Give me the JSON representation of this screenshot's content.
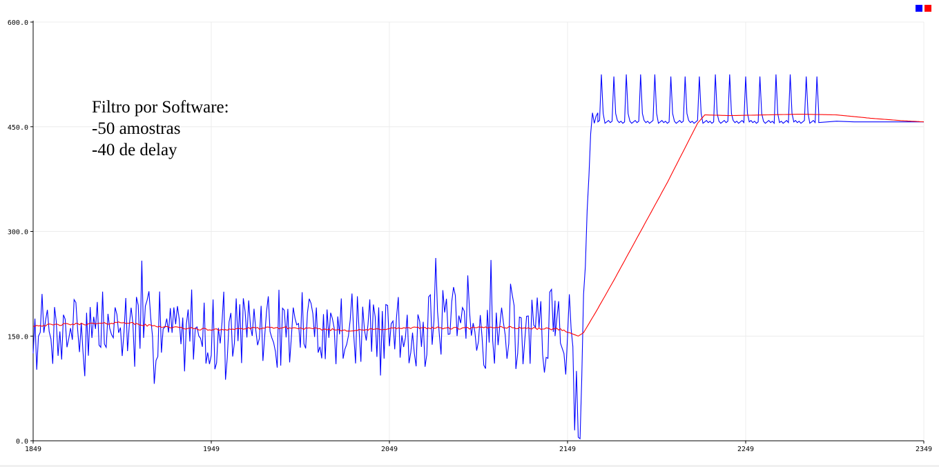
{
  "chart_data": {
    "type": "line",
    "title": "",
    "xlabel": "",
    "ylabel": "",
    "xlim": [
      1849,
      2349
    ],
    "ylim": [
      0,
      600
    ],
    "grid": true,
    "legend": "top-right",
    "x_ticks": [
      "1849",
      "1949",
      "2049",
      "2149",
      "2249",
      "2349"
    ],
    "y_ticks": [
      "600.0",
      "450.0",
      "300.0",
      "150.0",
      "0.0"
    ],
    "annotation": [
      "Filtro por Software:",
      "-50 amostras",
      "-40 de delay"
    ],
    "series": [
      {
        "color": "#0000ff",
        "segments": [
          {
            "x0": 1849,
            "x1": 2142,
            "base": 160,
            "amp": 58,
            "seed": 7
          },
          {
            "x0": 2142,
            "x1": 2157,
            "points": [
              [
                2142,
                150
              ],
              [
                2144,
                200
              ],
              [
                2145,
                140
              ],
              [
                2147,
                125
              ],
              [
                2148,
                95
              ],
              [
                2149,
                150
              ],
              [
                2150,
                210
              ],
              [
                2151,
                160
              ],
              [
                2152,
                135
              ],
              [
                2153,
                15
              ],
              [
                2154,
                100
              ],
              [
                2155,
                5
              ],
              [
                2156,
                3
              ],
              [
                2157,
                90
              ]
            ]
          },
          {
            "x0": 2157,
            "x1": 2166,
            "points": [
              [
                2157,
                90
              ],
              [
                2158,
                210
              ],
              [
                2159,
                250
              ],
              [
                2160,
                330
              ],
              [
                2161,
                380
              ],
              [
                2162,
                440
              ],
              [
                2163,
                470
              ],
              [
                2164,
                455
              ],
              [
                2165,
                465
              ],
              [
                2166,
                470
              ]
            ]
          },
          {
            "x0": 2166,
            "x1": 2290,
            "spikes": [
              2168,
              2175,
              2182,
              2190,
              2198,
              2207,
              2215,
              2223,
              2232,
              2240,
              2249,
              2257,
              2266,
              2274,
              2283,
              2289
            ],
            "base": 457,
            "peak": 525
          },
          {
            "x0": 2290,
            "x1": 2349,
            "points": [
              [
                2290,
                456
              ],
              [
                2300,
                458
              ],
              [
                2310,
                457
              ],
              [
                2320,
                457
              ],
              [
                2330,
                457
              ],
              [
                2340,
                457
              ],
              [
                2349,
                457
              ]
            ]
          }
        ]
      },
      {
        "color": "#ff0000",
        "points": [
          [
            1849,
            165
          ],
          [
            1870,
            167
          ],
          [
            1890,
            168
          ],
          [
            1900,
            170
          ],
          [
            1910,
            166
          ],
          [
            1930,
            162
          ],
          [
            1950,
            159
          ],
          [
            1970,
            161
          ],
          [
            1990,
            162
          ],
          [
            2010,
            160
          ],
          [
            2030,
            158
          ],
          [
            2050,
            161
          ],
          [
            2070,
            162
          ],
          [
            2090,
            161
          ],
          [
            2110,
            163
          ],
          [
            2130,
            161
          ],
          [
            2145,
            160
          ],
          [
            2150,
            155
          ],
          [
            2155,
            150
          ],
          [
            2158,
            155
          ],
          [
            2165,
            185
          ],
          [
            2175,
            230
          ],
          [
            2190,
            300
          ],
          [
            2205,
            370
          ],
          [
            2215,
            420
          ],
          [
            2222,
            455
          ],
          [
            2226,
            467
          ],
          [
            2240,
            466
          ],
          [
            2260,
            467
          ],
          [
            2280,
            468
          ],
          [
            2300,
            467
          ],
          [
            2320,
            462
          ],
          [
            2335,
            459
          ],
          [
            2349,
            457
          ]
        ]
      }
    ]
  },
  "legend": {
    "swatches": [
      "#0000ff",
      "#ff0000"
    ]
  }
}
